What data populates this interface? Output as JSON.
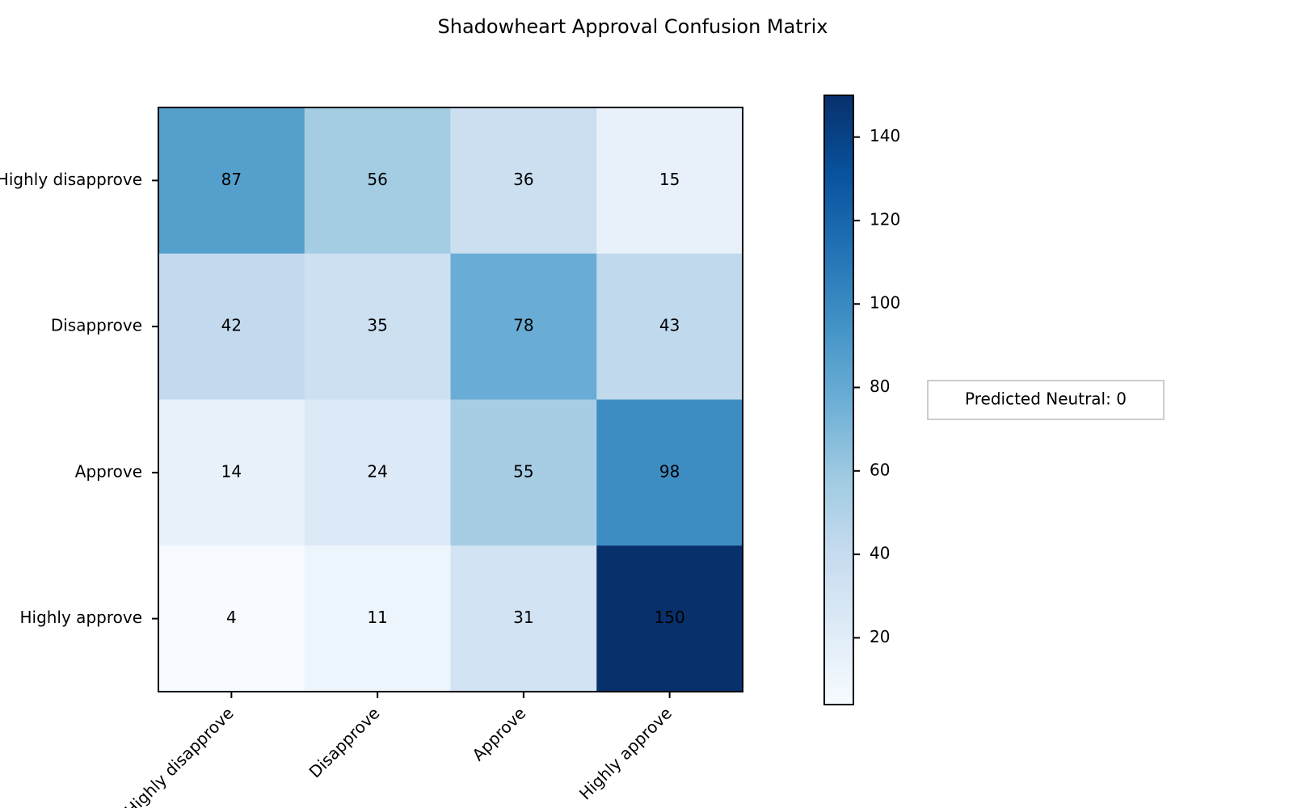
{
  "chart_data": {
    "type": "heatmap",
    "title": "Shadowheart Approval Confusion Matrix",
    "x_categories": [
      "Highly disapprove",
      "Disapprove",
      "Approve",
      "Highly approve"
    ],
    "y_categories": [
      "Highly disapprove",
      "Disapprove",
      "Approve",
      "Highly approve"
    ],
    "z": [
      [
        87,
        56,
        36,
        15
      ],
      [
        42,
        35,
        78,
        43
      ],
      [
        14,
        24,
        55,
        98
      ],
      [
        4,
        11,
        31,
        150
      ]
    ],
    "colorscale": [
      "#f7fbff",
      "#deebf7",
      "#c6dbef",
      "#9ecae1",
      "#6baed6",
      "#4292c6",
      "#2171b5",
      "#08519c",
      "#08306b"
    ],
    "clim": [
      4,
      150
    ],
    "colorbar_ticks": [
      20,
      40,
      60,
      80,
      100,
      120,
      140
    ],
    "annotation": "Predicted Neutral: 0"
  }
}
